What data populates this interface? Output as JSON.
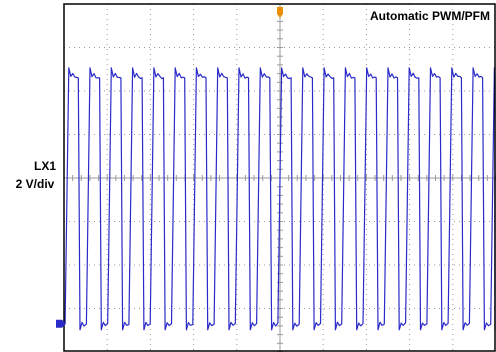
{
  "chart_data": {
    "type": "line",
    "title": "Automatic PWM/PFM",
    "channel": {
      "name": "LX1",
      "scale": "2 V/div"
    },
    "colors": {
      "trace": "#2a2ac8",
      "grid": "#9a9a9a",
      "trigger_marker": "#e8900a",
      "frame": "#000000"
    },
    "grid": true,
    "divisions": {
      "horizontal": 10,
      "vertical": 8
    },
    "ylim_div": [
      -4,
      4
    ],
    "waveform": {
      "kind": "square",
      "periods_visible": 20.3,
      "first_rising_edge_div": 0.06,
      "duty_cycle": 0.55,
      "high_level_div": 2.35,
      "low_level_div": -3.35,
      "rise_time_div": 0.05,
      "fall_time_div": 0.04,
      "overshoot_div": 0.18,
      "undershoot_div": 0.14
    },
    "trigger_position_div": 5
  }
}
